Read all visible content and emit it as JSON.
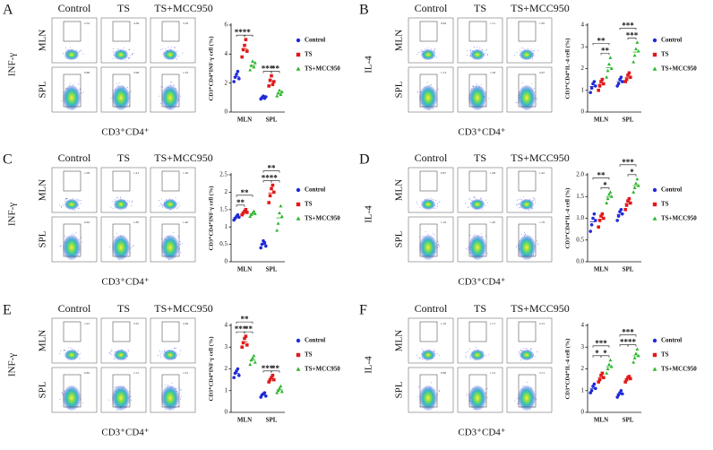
{
  "chart_data": [
    {
      "type": "dot",
      "panel": "A",
      "column_labels": [
        "Control",
        "TS",
        "TS+MCC950"
      ],
      "row_labels": [
        "MLN",
        "SPL"
      ],
      "marker_label": "INF-γ",
      "flow_xlabel": "CD3⁺CD4⁺",
      "gate_values": [
        [
          "2.52",
          "4.36",
          "3.18"
        ],
        [
          "0.88",
          "2.98",
          "1.33"
        ]
      ],
      "ylabel": "CD3⁺CD4⁺INF-γ cell (%)",
      "categories": [
        "MLN",
        "SPL"
      ],
      "ylim": [
        0,
        6
      ],
      "yticks": [
        0,
        2,
        4,
        6
      ],
      "series": [
        {
          "name": "Control",
          "color": "#1f2bd6",
          "marker": "circle",
          "values": [
            [
              2.1,
              2.4,
              2.6,
              2.8,
              2.3
            ],
            [
              0.9,
              1.0,
              1.1,
              0.95,
              1.05
            ]
          ]
        },
        {
          "name": "TS",
          "color": "#e01a1a",
          "marker": "square",
          "values": [
            [
              3.8,
              4.3,
              4.6,
              5.0,
              4.2
            ],
            [
              1.8,
              2.2,
              2.5,
              1.9,
              2.1
            ]
          ]
        },
        {
          "name": "TS+MCC950",
          "color": "#2db52d",
          "marker": "triangle",
          "values": [
            [
              2.9,
              3.2,
              3.5,
              3.1,
              3.4
            ],
            [
              1.1,
              1.3,
              1.5,
              1.2,
              1.4
            ]
          ]
        }
      ],
      "brackets": [
        {
          "label": "***",
          "category": 0,
          "from": 0,
          "to": 1
        },
        {
          "label": "*",
          "category": 0,
          "from": 1,
          "to": 2
        },
        {
          "label": "***",
          "category": 1,
          "from": 0,
          "to": 1
        },
        {
          "label": "**",
          "category": 1,
          "from": 1,
          "to": 2
        }
      ]
    },
    {
      "type": "dot",
      "panel": "B",
      "column_labels": [
        "Control",
        "TS",
        "TS+MCC950"
      ],
      "row_labels": [
        "MLN",
        "SPL"
      ],
      "marker_label": "IL-4",
      "flow_xlabel": "CD3⁺CD4⁺",
      "gate_values": [
        [
          "0.84",
          "1.11",
          "1.85"
        ],
        [
          "1.13",
          "1.58",
          "2.67"
        ]
      ],
      "ylabel": "CD3⁺CD4⁺IL-4 cell (%)",
      "categories": [
        "MLN",
        "SPL"
      ],
      "ylim": [
        0,
        4
      ],
      "yticks": [
        0,
        1,
        2,
        3,
        4
      ],
      "series": [
        {
          "name": "Control",
          "color": "#1f2bd6",
          "marker": "circle",
          "values": [
            [
              0.9,
              1.1,
              1.3,
              1.4,
              1.2
            ],
            [
              1.2,
              1.3,
              1.5,
              1.6,
              1.4
            ]
          ]
        },
        {
          "name": "TS",
          "color": "#e01a1a",
          "marker": "square",
          "values": [
            [
              1.0,
              1.2,
              1.4,
              1.5,
              1.3
            ],
            [
              1.4,
              1.5,
              1.7,
              1.8,
              1.6
            ]
          ]
        },
        {
          "name": "TS+MCC950",
          "color": "#2db52d",
          "marker": "triangle",
          "values": [
            [
              1.6,
              1.9,
              2.2,
              2.5,
              2.0
            ],
            [
              2.3,
              2.6,
              2.9,
              3.2,
              2.8
            ]
          ]
        }
      ],
      "brackets": [
        {
          "label": "**",
          "category": 0,
          "from": 0,
          "to": 2
        },
        {
          "label": "**",
          "category": 0,
          "from": 1,
          "to": 2
        },
        {
          "label": "***",
          "category": 1,
          "from": 0,
          "to": 2
        },
        {
          "label": "***",
          "category": 1,
          "from": 1,
          "to": 2
        }
      ]
    },
    {
      "type": "dot",
      "panel": "C",
      "column_labels": [
        "Control",
        "TS",
        "TS+MCC950"
      ],
      "row_labels": [
        "MLN",
        "SPL"
      ],
      "marker_label": "INF-γ",
      "flow_xlabel": "CD3⁺CD4⁺",
      "gate_values": [
        [
          "1.09",
          "1.41",
          "1.30"
        ],
        [
          "0.62",
          "1.85",
          "1.40"
        ]
      ],
      "ylabel": "CD3⁺CD4⁺INF-γ cell (%)",
      "categories": [
        "MLN",
        "SPL"
      ],
      "ylim": [
        0,
        2.5
      ],
      "yticks": [
        0,
        0.5,
        1,
        1.5,
        2,
        2.5
      ],
      "series": [
        {
          "name": "Control",
          "color": "#1f2bd6",
          "marker": "circle",
          "values": [
            [
              1.2,
              1.25,
              1.3,
              1.35,
              1.28
            ],
            [
              0.4,
              0.5,
              0.6,
              0.55,
              0.45
            ]
          ]
        },
        {
          "name": "TS",
          "color": "#e01a1a",
          "marker": "square",
          "values": [
            [
              1.35,
              1.4,
              1.45,
              1.5,
              1.42
            ],
            [
              1.7,
              1.9,
              2.1,
              2.2,
              2.0
            ]
          ]
        },
        {
          "name": "TS+MCC950",
          "color": "#2db52d",
          "marker": "triangle",
          "values": [
            [
              1.3,
              1.35,
              1.4,
              1.45,
              1.38
            ],
            [
              0.9,
              1.1,
              1.4,
              1.6,
              1.3
            ]
          ]
        }
      ],
      "brackets": [
        {
          "label": "**",
          "category": 0,
          "from": 0,
          "to": 2
        },
        {
          "label": "**",
          "category": 0,
          "from": 0,
          "to": 1
        },
        {
          "label": "**",
          "category": 1,
          "from": 0,
          "to": 2
        },
        {
          "label": "***",
          "category": 1,
          "from": 0,
          "to": 1
        },
        {
          "label": "*",
          "category": 1,
          "from": 1,
          "to": 2
        }
      ]
    },
    {
      "type": "dot",
      "panel": "D",
      "column_labels": [
        "Control",
        "TS",
        "TS+MCC950"
      ],
      "row_labels": [
        "MLN",
        "SPL"
      ],
      "marker_label": "IL-4",
      "flow_xlabel": "CD3⁺CD4⁺",
      "gate_values": [
        [
          "0.87",
          "1.08",
          "1.45"
        ],
        [
          "1.19",
          "1.40",
          "1.76"
        ]
      ],
      "ylabel": "CD3⁺CD4⁺IL-4 cell (%)",
      "categories": [
        "MLN",
        "SPL"
      ],
      "ylim": [
        0,
        2
      ],
      "yticks": [
        {
          "value": 0,
          "label": "0.0"
        },
        {
          "value": 0.5,
          "label": "0.5"
        },
        {
          "value": 1,
          "label": "1.0"
        },
        {
          "value": 1.5,
          "label": "1.5"
        },
        {
          "value": 2,
          "label": "2.0"
        }
      ],
      "series": [
        {
          "name": "Control",
          "color": "#1f2bd6",
          "marker": "circle",
          "values": [
            [
              0.7,
              0.85,
              1.0,
              1.1,
              0.95
            ],
            [
              0.95,
              1.05,
              1.15,
              1.2,
              1.1
            ]
          ]
        },
        {
          "name": "TS",
          "color": "#e01a1a",
          "marker": "square",
          "values": [
            [
              0.8,
              0.95,
              1.05,
              1.1,
              1.0
            ],
            [
              1.2,
              1.3,
              1.4,
              1.45,
              1.35
            ]
          ]
        },
        {
          "name": "TS+MCC950",
          "color": "#2db52d",
          "marker": "triangle",
          "values": [
            [
              1.35,
              1.45,
              1.55,
              1.6,
              1.5
            ],
            [
              1.6,
              1.7,
              1.8,
              1.9,
              1.75
            ]
          ]
        }
      ],
      "brackets": [
        {
          "label": "**",
          "category": 0,
          "from": 0,
          "to": 2
        },
        {
          "label": "*",
          "category": 0,
          "from": 1,
          "to": 2
        },
        {
          "label": "***",
          "category": 1,
          "from": 0,
          "to": 2
        },
        {
          "label": "*",
          "category": 1,
          "from": 1,
          "to": 2
        }
      ]
    },
    {
      "type": "dot",
      "panel": "E",
      "column_labels": [
        "Control",
        "TS",
        "TS+MCC950"
      ],
      "row_labels": [
        "MLN",
        "SPL"
      ],
      "marker_label": "INF-γ",
      "flow_xlabel": "CD3⁺CD4⁺",
      "gate_values": [
        [
          "1.91",
          "3.25",
          "2.48"
        ],
        [
          "0.85",
          "1.51",
          "1.01"
        ]
      ],
      "ylabel": "CD3⁺CD4⁺INF-γ cell (%)",
      "categories": [
        "MLN",
        "SPL"
      ],
      "ylim": [
        0,
        4
      ],
      "yticks": [
        0,
        1,
        2,
        3,
        4
      ],
      "series": [
        {
          "name": "Control",
          "color": "#1f2bd6",
          "marker": "circle",
          "values": [
            [
              1.6,
              1.8,
              1.9,
              2.0,
              1.7
            ],
            [
              0.7,
              0.8,
              0.85,
              0.9,
              0.75
            ]
          ]
        },
        {
          "name": "TS",
          "color": "#e01a1a",
          "marker": "square",
          "values": [
            [
              3.0,
              3.2,
              3.4,
              3.5,
              3.1
            ],
            [
              1.4,
              1.5,
              1.6,
              1.7,
              1.5
            ]
          ]
        },
        {
          "name": "TS+MCC950",
          "color": "#2db52d",
          "marker": "triangle",
          "values": [
            [
              2.2,
              2.4,
              2.5,
              2.6,
              2.3
            ],
            [
              0.9,
              1.0,
              1.1,
              1.2,
              0.95
            ]
          ]
        }
      ],
      "brackets": [
        {
          "label": "**",
          "category": 0,
          "from": 0,
          "to": 2
        },
        {
          "label": "***",
          "category": 0,
          "from": 0,
          "to": 1
        },
        {
          "label": "**",
          "category": 0,
          "from": 1,
          "to": 2
        },
        {
          "label": "***",
          "category": 1,
          "from": 0,
          "to": 1
        },
        {
          "label": "**",
          "category": 1,
          "from": 1,
          "to": 2
        }
      ]
    },
    {
      "type": "dot",
      "panel": "F",
      "column_labels": [
        "Control",
        "TS",
        "TS+MCC950"
      ],
      "row_labels": [
        "MLN",
        "SPL"
      ],
      "marker_label": "IL-4",
      "flow_xlabel": "CD3⁺CD4⁺",
      "gate_values": [
        [
          "1.10",
          "1.71",
          "2.15"
        ],
        [
          "0.88",
          "1.51",
          "2.71"
        ]
      ],
      "ylabel": "CD3⁺CD4⁺IL-4 cell (%)",
      "categories": [
        "MLN",
        "SPL"
      ],
      "ylim": [
        0,
        4
      ],
      "yticks": [
        0,
        1,
        2,
        3,
        4
      ],
      "series": [
        {
          "name": "Control",
          "color": "#1f2bd6",
          "marker": "circle",
          "values": [
            [
              0.9,
              1.0,
              1.2,
              1.3,
              1.1
            ],
            [
              0.7,
              0.8,
              0.9,
              1.0,
              0.85
            ]
          ]
        },
        {
          "name": "TS",
          "color": "#e01a1a",
          "marker": "square",
          "values": [
            [
              1.4,
              1.5,
              1.7,
              1.8,
              1.6
            ],
            [
              1.4,
              1.5,
              1.6,
              1.65,
              1.55
            ]
          ]
        },
        {
          "name": "TS+MCC950",
          "color": "#2db52d",
          "marker": "triangle",
          "values": [
            [
              1.8,
              2.0,
              2.2,
              2.4,
              2.1
            ],
            [
              2.3,
              2.5,
              2.7,
              2.9,
              2.6
            ]
          ]
        }
      ],
      "brackets": [
        {
          "label": "***",
          "category": 0,
          "from": 0,
          "to": 2
        },
        {
          "label": "*",
          "category": 0,
          "from": 0,
          "to": 1
        },
        {
          "label": "*",
          "category": 0,
          "from": 1,
          "to": 2
        },
        {
          "label": "***",
          "category": 1,
          "from": 0,
          "to": 2
        },
        {
          "label": "**",
          "category": 1,
          "from": 0,
          "to": 1
        },
        {
          "label": "**",
          "category": 1,
          "from": 1,
          "to": 2
        }
      ]
    }
  ]
}
